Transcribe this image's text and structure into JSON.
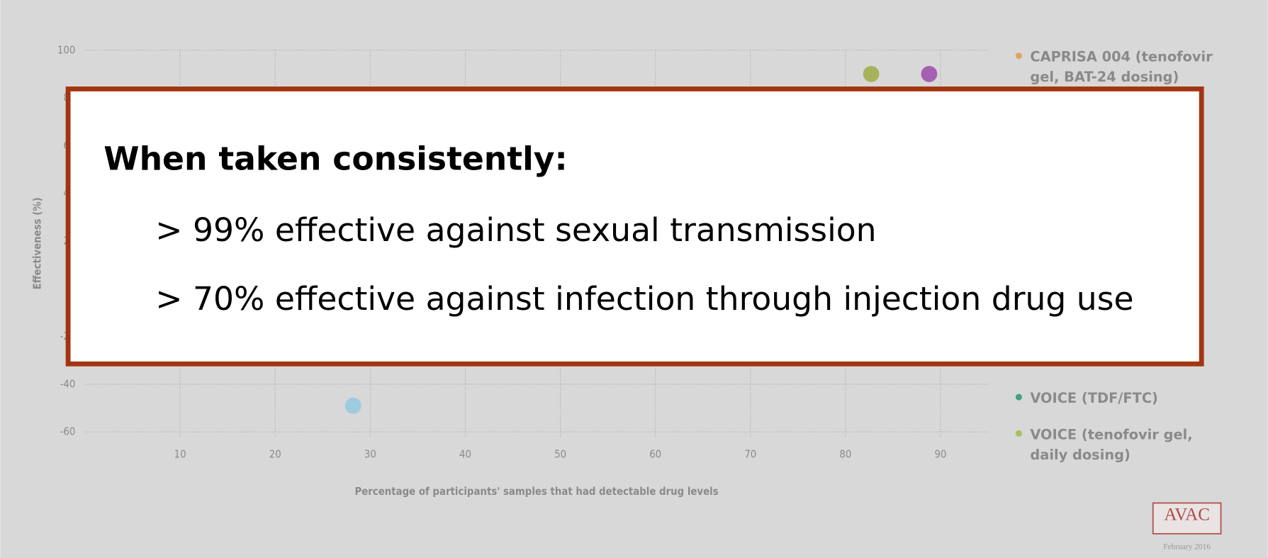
{
  "chart_data": {
    "type": "scatter",
    "xlabel": "Percentage of participants' samples that had detectable drug levels",
    "ylabel": "Effectiveness (%)",
    "xlim": [
      0,
      95
    ],
    "xticks": [
      10,
      20,
      30,
      40,
      50,
      60,
      70,
      80,
      90
    ],
    "ylim": [
      -62,
      100
    ],
    "yticks": [
      100,
      80,
      60,
      40,
      20,
      0,
      -20,
      -40,
      -60
    ],
    "grid": true,
    "points": [
      {
        "x": 82.7,
        "y": 90,
        "color": "#a7b35c"
      },
      {
        "x": 88.8,
        "y": 90,
        "color": "#a65fb3"
      },
      {
        "x": 28.2,
        "y": -49,
        "color": "#9dcbe0"
      }
    ],
    "legend": [
      {
        "lines": [
          "CAPRISA 004 (tenofovir",
          "gel, BAT-24 dosing)"
        ],
        "color": "#e0a560"
      },
      {
        "lines": [
          "VOICE (TDF/FTC)"
        ],
        "color": "#3fa27c"
      },
      {
        "lines": [
          "VOICE (tenofovir gel,",
          "daily dosing)"
        ],
        "color": "#a8c05e"
      }
    ]
  },
  "callout": {
    "heading": "When taken consistently:",
    "items": [
      "> 99% effective against sexual transmission",
      "> 70% effective against infection through injection drug use"
    ]
  },
  "footer": {
    "logo": "AVAC",
    "date": "February 2016"
  }
}
